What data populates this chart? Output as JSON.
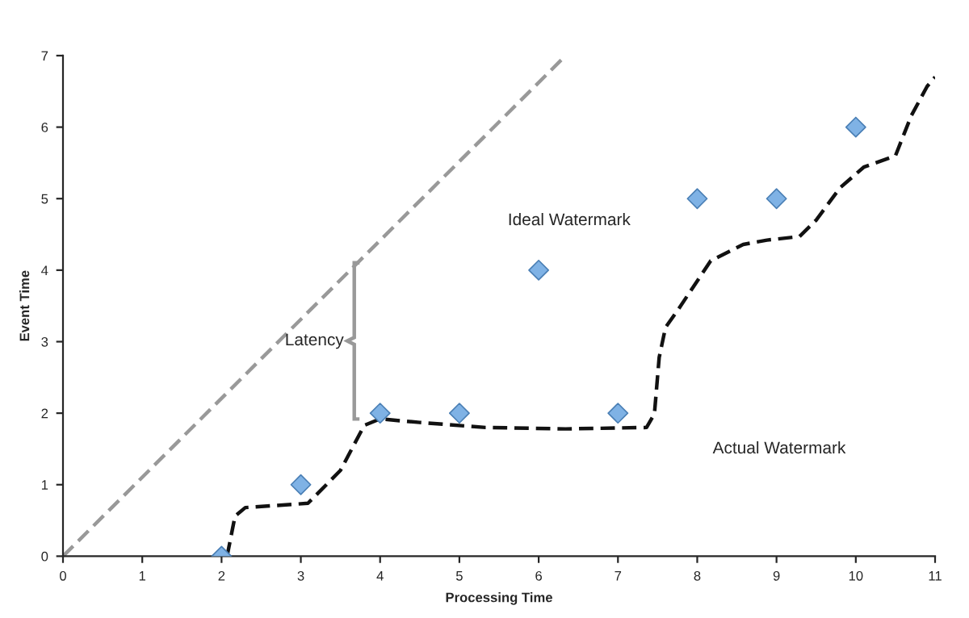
{
  "chart_data": {
    "type": "scatter",
    "xlabel": "Processing Time",
    "ylabel": "Event Time",
    "xlim": [
      0,
      11
    ],
    "ylim": [
      0,
      7
    ],
    "xticks": [
      0,
      1,
      2,
      3,
      4,
      5,
      6,
      7,
      8,
      9,
      10,
      11
    ],
    "yticks": [
      0,
      1,
      2,
      3,
      4,
      5,
      6,
      7
    ],
    "grid": false,
    "series": [
      {
        "color": "#7fb2e5",
        "marker": "diamond",
        "x": [
          2,
          3,
          4,
          5,
          6,
          7,
          8,
          9,
          10
        ],
        "values": [
          0,
          1,
          2,
          2,
          4,
          2,
          5,
          5,
          6
        ]
      },
      {
        "type": "line",
        "color": "#999999",
        "line_style": "dashed",
        "marker": "none",
        "x": [
          0,
          6.34
        ],
        "values": [
          0,
          7
        ]
      },
      {
        "type": "line",
        "color": "#111111",
        "line_style": "dashed",
        "marker": "none",
        "x": [
          2.07,
          2.17,
          2.3,
          3.09,
          3.5,
          3.8,
          4.0,
          4.5,
          5.33,
          6.34,
          7.36,
          7.46,
          7.52,
          7.6,
          7.76,
          8.17,
          8.58,
          8.88,
          9.29,
          9.5,
          9.8,
          10.1,
          10.5,
          10.7,
          10.9,
          11.0
        ],
        "values": [
          0,
          0.56,
          0.68,
          0.74,
          1.2,
          1.83,
          1.92,
          1.87,
          1.8,
          1.78,
          1.8,
          1.99,
          2.78,
          3.2,
          3.45,
          4.13,
          4.36,
          4.42,
          4.47,
          4.7,
          5.15,
          5.44,
          5.6,
          6.16,
          6.57,
          6.7
        ]
      }
    ],
    "annotations": [
      "Ideal Watermark",
      "Actual Watermark",
      "Latency"
    ]
  }
}
